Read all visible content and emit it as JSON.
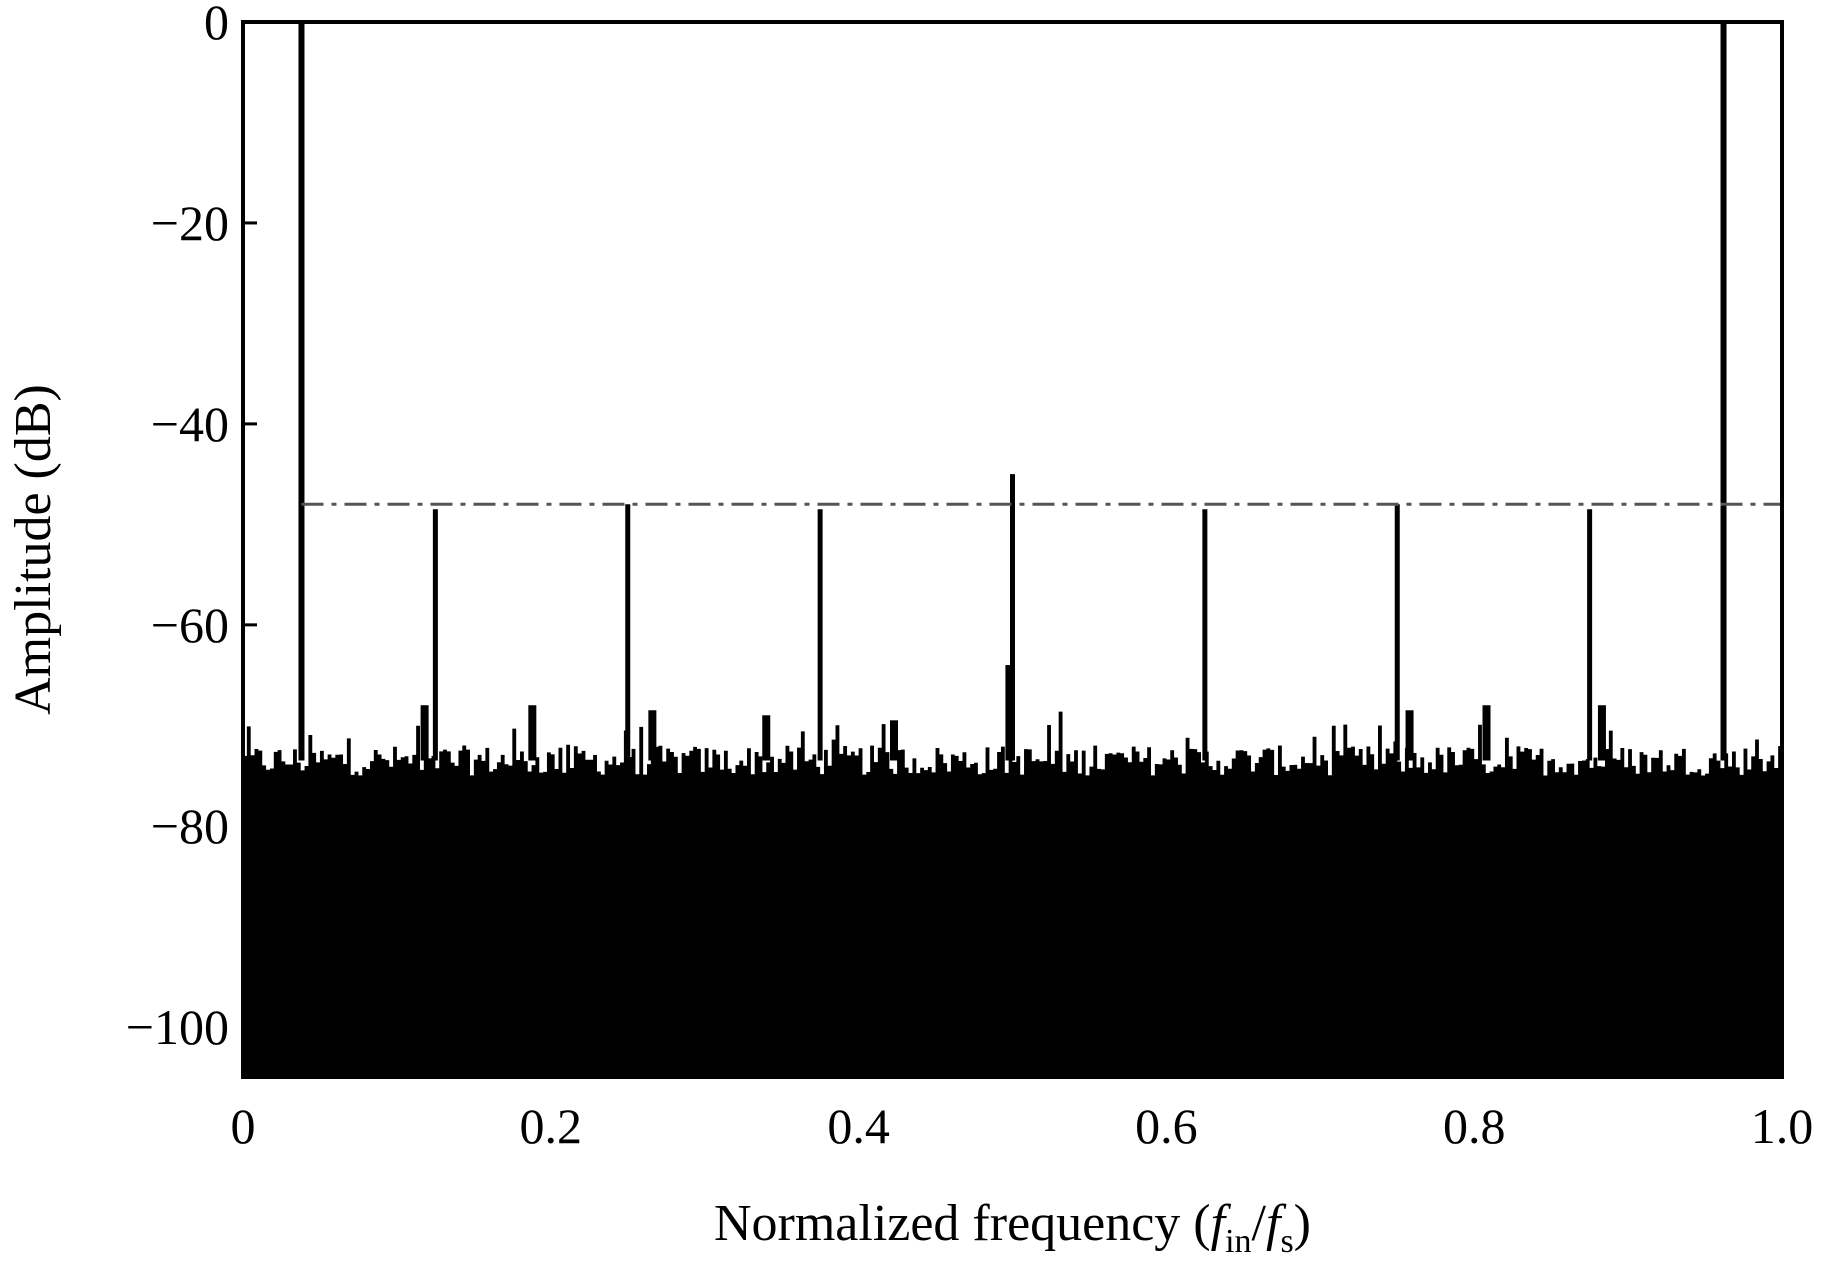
{
  "chart_data": {
    "type": "bar",
    "title": "",
    "xlabel": "Normalized frequency (fin/fs)",
    "xlabel_parts": {
      "prefix": "Normalized frequency (",
      "f1": "f",
      "sub1": "in",
      "slash": "/",
      "f2": "f",
      "sub2": "s",
      "suffix": ")"
    },
    "ylabel": "Amplitude (dB)",
    "xlim": [
      0,
      1.0
    ],
    "ylim": [
      -105,
      0
    ],
    "grid": false,
    "x_ticks": [
      {
        "value": 0,
        "label": "0"
      },
      {
        "value": 0.2,
        "label": "0.2"
      },
      {
        "value": 0.4,
        "label": "0.4"
      },
      {
        "value": 0.6,
        "label": "0.6"
      },
      {
        "value": 0.8,
        "label": "0.8"
      },
      {
        "value": 1.0,
        "label": "1.0"
      }
    ],
    "y_ticks": [
      {
        "value": 0,
        "label": "0"
      },
      {
        "value": -20,
        "label": "−20"
      },
      {
        "value": -40,
        "label": "−40"
      },
      {
        "value": -60,
        "label": "−60"
      },
      {
        "value": -80,
        "label": "−80"
      },
      {
        "value": -100,
        "label": "−100"
      }
    ],
    "noise_floor": {
      "description": "dense FFT noise floor",
      "mean_db": -73.5,
      "spread_db": 1.5,
      "bins": 400,
      "baseline_db": -105
    },
    "reference_line": {
      "style": "dash-dot",
      "y": -48,
      "color": "#555555"
    },
    "spurs": [
      {
        "x": 0.038,
        "y": 0
      },
      {
        "x": 0.125,
        "y": -48.5
      },
      {
        "x": 0.25,
        "y": -48
      },
      {
        "x": 0.375,
        "y": -48.5
      },
      {
        "x": 0.5,
        "y": -45
      },
      {
        "x": 0.625,
        "y": -48.5
      },
      {
        "x": 0.75,
        "y": -48
      },
      {
        "x": 0.875,
        "y": -48.5
      },
      {
        "x": 0.962,
        "y": 0
      }
    ],
    "noise_bumps": [
      {
        "x": 0.118,
        "y": -68
      },
      {
        "x": 0.188,
        "y": -68
      },
      {
        "x": 0.266,
        "y": -68.5
      },
      {
        "x": 0.34,
        "y": -69
      },
      {
        "x": 0.423,
        "y": -69.5
      },
      {
        "x": 0.498,
        "y": -64
      },
      {
        "x": 0.758,
        "y": -68.5
      },
      {
        "x": 0.808,
        "y": -68
      },
      {
        "x": 0.883,
        "y": -68
      }
    ]
  }
}
